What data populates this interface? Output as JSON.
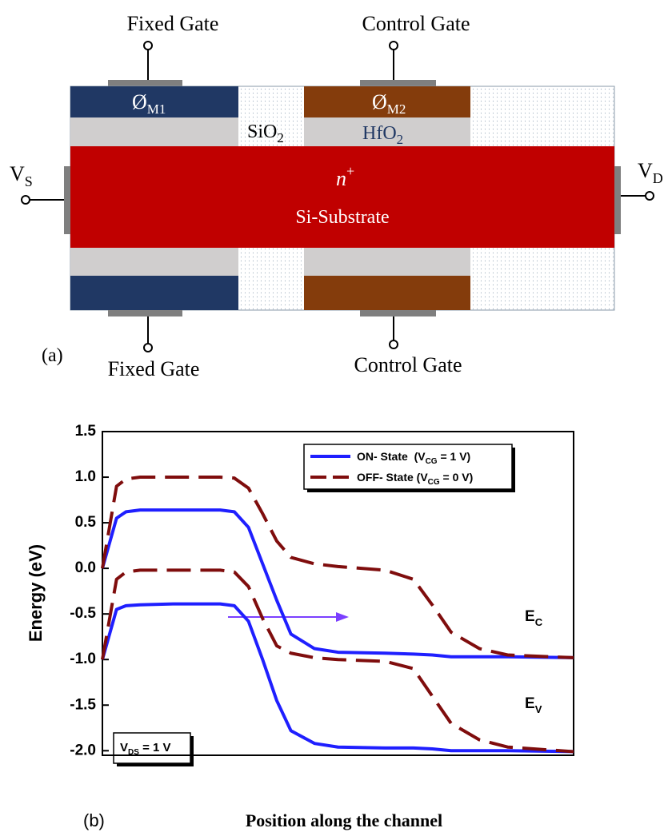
{
  "diagram": {
    "top_labels": [
      "Fixed Gate",
      "Control Gate"
    ],
    "bottom_labels": [
      "Fixed Gate",
      "Control Gate"
    ],
    "source": [
      "V",
      "S"
    ],
    "drain": [
      "V",
      "D"
    ],
    "gate1": [
      "Ø",
      "M1"
    ],
    "oxide_gap": [
      "SiO",
      "2"
    ],
    "gate2": [
      "Ø",
      "M2"
    ],
    "hfo2": [
      "HfO",
      "2"
    ],
    "doping": [
      "n",
      "+"
    ],
    "substrate": "Si-Substrate",
    "panel_label": "(a)"
  },
  "chart_data": {
    "type": "line",
    "panel_label": "(b)",
    "x_label": "Position along the channel",
    "y_label": "Energy (eV)",
    "ylim": [
      -2.05,
      1.5
    ],
    "yticks": [
      -2.0,
      -1.5,
      -1.0,
      -0.5,
      0.0,
      0.5,
      1.0,
      1.5
    ],
    "ytick_labels": [
      "-2.0",
      "-1.5",
      "-1.0",
      "-0.5",
      "0.0",
      "0.5",
      "1.0",
      "1.5"
    ],
    "xlim": [
      0,
      100
    ],
    "x": [
      0,
      3,
      5,
      8,
      15,
      25,
      28,
      31,
      34,
      37,
      40,
      45,
      50,
      60,
      66,
      70,
      74,
      80,
      86,
      100
    ],
    "series": [
      {
        "name": [
          "ON- State  (V",
          "CG",
          " = 1 V)"
        ],
        "color": "#1f1fff",
        "dashed": false,
        "values": [
          0.0,
          0.55,
          0.62,
          0.64,
          0.64,
          0.64,
          0.62,
          0.45,
          0.05,
          -0.35,
          -0.72,
          -0.88,
          -0.92,
          -0.93,
          -0.94,
          -0.95,
          -0.97,
          -0.97,
          -0.97,
          -0.98
        ],
        "lower_values": [
          -1.0,
          -0.45,
          -0.41,
          -0.4,
          -0.39,
          -0.39,
          -0.41,
          -0.58,
          -1.0,
          -1.45,
          -1.78,
          -1.92,
          -1.96,
          -1.97,
          -1.97,
          -1.98,
          -2.0,
          -2.0,
          -2.0,
          -2.01
        ]
      },
      {
        "name": [
          "OFF- State (V",
          "CG",
          " = 0 V)"
        ],
        "color": "#7f0d0d",
        "dashed": true,
        "values": [
          0.0,
          0.9,
          0.98,
          1.0,
          1.0,
          1.0,
          0.99,
          0.88,
          0.6,
          0.3,
          0.12,
          0.05,
          0.02,
          -0.02,
          -0.12,
          -0.4,
          -0.7,
          -0.88,
          -0.95,
          -0.98
        ],
        "lower_values": [
          -1.0,
          -0.12,
          -0.04,
          -0.02,
          -0.02,
          -0.02,
          -0.04,
          -0.2,
          -0.55,
          -0.85,
          -0.93,
          -0.98,
          -1.0,
          -1.02,
          -1.1,
          -1.4,
          -1.7,
          -1.88,
          -1.96,
          -2.01
        ]
      }
    ],
    "annotations": {
      "ec": [
        "E",
        "C"
      ],
      "ev": [
        "E",
        "V"
      ],
      "vds": [
        "V",
        "DS",
        " = 1 V"
      ]
    }
  }
}
